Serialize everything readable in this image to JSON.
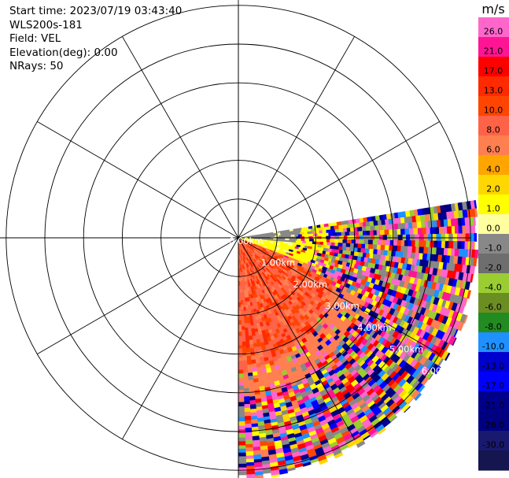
{
  "meta": {
    "start_time": "Start time: 2023/07/19 03:43:40",
    "instrument": "WLS200s-181",
    "field": "Field: VEL",
    "elevation": "Elevation(deg): 0.00",
    "nrays": "NRays: 50"
  },
  "colorbar": {
    "unit": "m/s",
    "ticks": [
      "26.0",
      "21.0",
      "17.0",
      "13.0",
      "10.0",
      "8.0",
      "6.0",
      "4.0",
      "2.0",
      "1.0",
      "0.0",
      "-1.0",
      "-2.0",
      "-4.0",
      "-6.0",
      "-8.0",
      "-10.0",
      "-13.0",
      "-17.0",
      "-21.0",
      "-26.0",
      "-30.0"
    ],
    "colors": [
      "#ff66cc",
      "#ff1493",
      "#ff0000",
      "#ff2a00",
      "#ff4500",
      "#ff6347",
      "#ff7f50",
      "#ffa500",
      "#ffd700",
      "#ffff00",
      "#ffffa0",
      "#888888",
      "#6e6e6e",
      "#9acd32",
      "#6b8e23",
      "#228b22",
      "#1e90ff",
      "#0000cd",
      "#0000ff",
      "#00008b",
      "#000080",
      "#191970",
      "#151550"
    ]
  },
  "range_rings": {
    "labels": [
      "0.00km",
      "1.00km",
      "2.00km",
      "3.00km",
      "4.00km",
      "5.00km",
      "6.00km"
    ]
  }
}
